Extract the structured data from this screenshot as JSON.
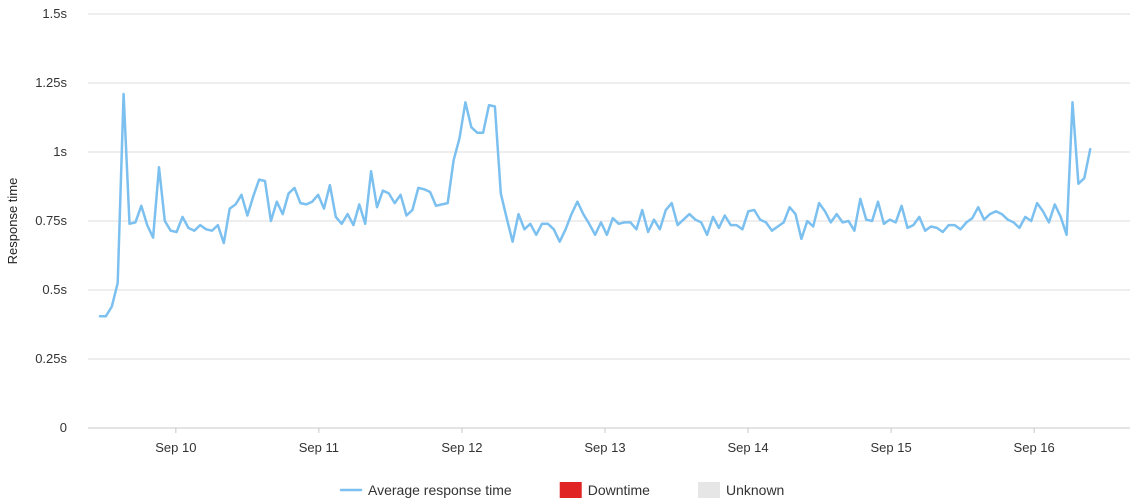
{
  "chart_data": {
    "type": "line",
    "ylabel": "Response time",
    "ylim": [
      0,
      1.5
    ],
    "yticks": [
      {
        "value": 0,
        "label": "0"
      },
      {
        "value": 0.25,
        "label": "0.25s"
      },
      {
        "value": 0.5,
        "label": "0.5s"
      },
      {
        "value": 0.75,
        "label": "0.75s"
      },
      {
        "value": 1,
        "label": "1s"
      },
      {
        "value": 1.25,
        "label": "1.25s"
      },
      {
        "value": 1.5,
        "label": "1.5s"
      }
    ],
    "xlim": [
      9.4,
      16.67
    ],
    "xticks": [
      {
        "value": 10,
        "label": "Sep 10"
      },
      {
        "value": 11,
        "label": "Sep 11"
      },
      {
        "value": 12,
        "label": "Sep 12"
      },
      {
        "value": 13,
        "label": "Sep 13"
      },
      {
        "value": 14,
        "label": "Sep 14"
      },
      {
        "value": 15,
        "label": "Sep 15"
      },
      {
        "value": 16,
        "label": "Sep 16"
      }
    ],
    "grid": true,
    "legend_position": "bottom-center",
    "legend": [
      {
        "label": "Average response time",
        "kind": "line",
        "color": "#7cc0f0"
      },
      {
        "label": "Downtime",
        "kind": "box",
        "color": "#e02424"
      },
      {
        "label": "Unknown",
        "kind": "box",
        "color": "#e6e6e6"
      }
    ],
    "series": [
      {
        "name": "Average response time",
        "color": "#7cc0f0",
        "x_start": 9.47,
        "x_step": 0.0412,
        "values": [
          0.405,
          0.405,
          0.44,
          0.525,
          1.21,
          0.74,
          0.745,
          0.805,
          0.735,
          0.69,
          0.945,
          0.75,
          0.715,
          0.71,
          0.765,
          0.725,
          0.715,
          0.735,
          0.72,
          0.715,
          0.735,
          0.67,
          0.795,
          0.81,
          0.845,
          0.77,
          0.84,
          0.9,
          0.895,
          0.75,
          0.82,
          0.775,
          0.85,
          0.87,
          0.815,
          0.81,
          0.82,
          0.845,
          0.795,
          0.88,
          0.765,
          0.74,
          0.775,
          0.735,
          0.81,
          0.74,
          0.93,
          0.8,
          0.86,
          0.85,
          0.815,
          0.845,
          0.77,
          0.79,
          0.87,
          0.865,
          0.855,
          0.805,
          0.81,
          0.815,
          0.97,
          1.05,
          1.18,
          1.09,
          1.07,
          1.07,
          1.17,
          1.165,
          0.85,
          0.76,
          0.675,
          0.775,
          0.72,
          0.74,
          0.7,
          0.74,
          0.74,
          0.72,
          0.675,
          0.72,
          0.775,
          0.82,
          0.775,
          0.74,
          0.7,
          0.745,
          0.7,
          0.76,
          0.74,
          0.745,
          0.745,
          0.72,
          0.79,
          0.71,
          0.755,
          0.72,
          0.79,
          0.815,
          0.735,
          0.755,
          0.775,
          0.755,
          0.745,
          0.7,
          0.765,
          0.725,
          0.77,
          0.735,
          0.735,
          0.72,
          0.785,
          0.79,
          0.755,
          0.745,
          0.715,
          0.73,
          0.745,
          0.8,
          0.775,
          0.685,
          0.75,
          0.73,
          0.815,
          0.785,
          0.745,
          0.775,
          0.745,
          0.75,
          0.715,
          0.83,
          0.755,
          0.75,
          0.82,
          0.74,
          0.755,
          0.745,
          0.805,
          0.725,
          0.735,
          0.765,
          0.715,
          0.73,
          0.725,
          0.71,
          0.735,
          0.735,
          0.72,
          0.745,
          0.76,
          0.8,
          0.755,
          0.775,
          0.785,
          0.775,
          0.755,
          0.745,
          0.725,
          0.765,
          0.75,
          0.815,
          0.785,
          0.745,
          0.81,
          0.765,
          0.7,
          1.18,
          0.885,
          0.905,
          1.01
        ]
      }
    ]
  }
}
